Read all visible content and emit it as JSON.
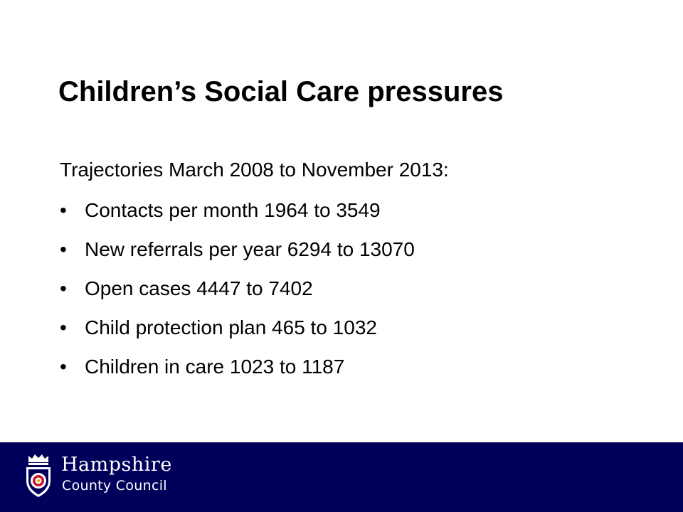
{
  "slide": {
    "title": "Children’s Social Care pressures",
    "intro": "Trajectories March 2008 to November 2013:",
    "bullet_marker": "•",
    "bullets": [
      "Contacts per month 1964 to 3549",
      "New referrals per year 6294 to 13070",
      "Open cases 4447 to 7402",
      "Child protection plan 465 to 1032",
      "Children in care 1023 to 1187"
    ]
  },
  "footer": {
    "background_color": "#00005a",
    "logo": {
      "icon": "hampshire-crest-icon",
      "name": "Hampshire",
      "subtitle": "County Council"
    }
  }
}
